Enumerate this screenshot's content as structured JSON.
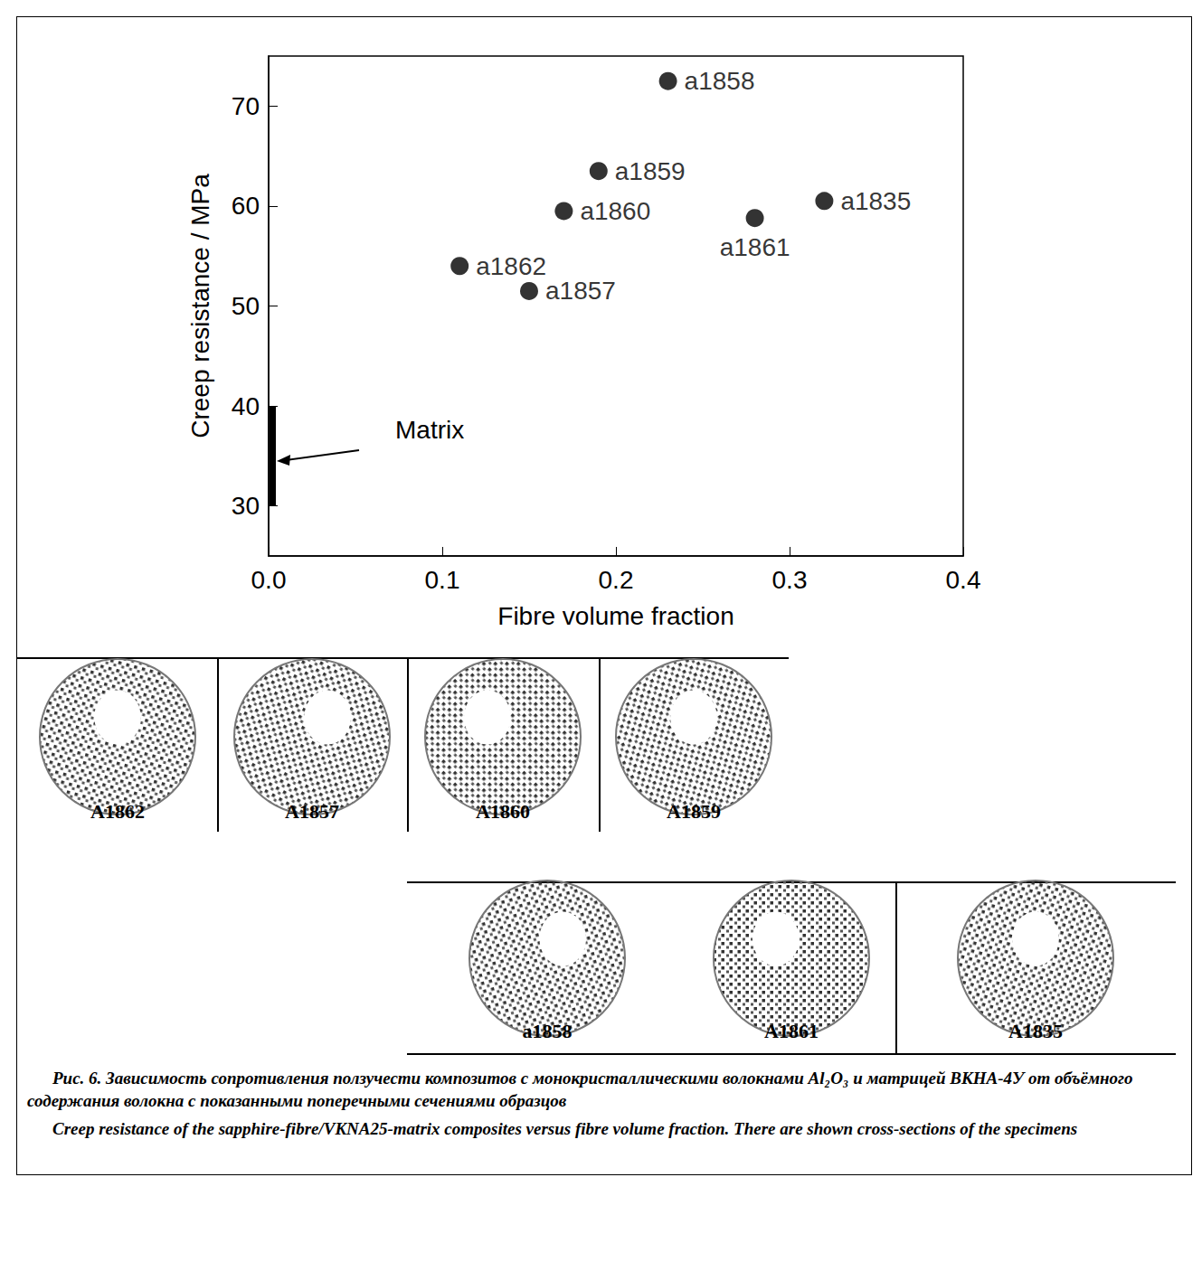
{
  "chart_data": {
    "type": "scatter",
    "xlabel": "Fibre volume fraction",
    "ylabel": "Creep resistance / MPa",
    "x": [
      0.23,
      0.19,
      0.17,
      0.32,
      0.28,
      0.11,
      0.15
    ],
    "values": [
      72.5,
      63.5,
      59.5,
      60.5,
      58.8,
      54,
      51.5
    ],
    "point_labels": [
      "a1858",
      "a1859",
      "a1860",
      "a1835",
      "a1861",
      "a1862",
      "a1857"
    ],
    "color": "#000000",
    "marker": "circle",
    "xlim": [
      0,
      0.4
    ],
    "xticks": [
      {
        "value": 0,
        "label": "0.0"
      },
      0.1,
      0.2,
      0.3,
      0.4
    ],
    "ylim": [
      25,
      75
    ],
    "yticks": [
      30,
      40,
      50,
      60,
      70
    ],
    "grid": false,
    "matrix_range": {
      "label": "Matrix",
      "x": 0,
      "low": 30,
      "high": 40,
      "arrow_y": 34.5
    }
  },
  "cross_sections": {
    "row1": [
      "A1862",
      "A1857",
      "A1860",
      "A1859"
    ],
    "row2": [
      "a1858",
      "A1861",
      "A1835"
    ]
  },
  "caption": {
    "ru": "Рис. 6. Зависимость сопротивления ползучести композитов с монокристаллическими волокнами Al₂O₃ и матрицей ВКНА-4У от объёмного содержания волокна с показанными поперечными сечениями образцов",
    "en": "Creep resistance of the sapphire-fibre/VKNA25-matrix composites versus fibre volume fraction. There are shown cross-sections of the specimens"
  }
}
